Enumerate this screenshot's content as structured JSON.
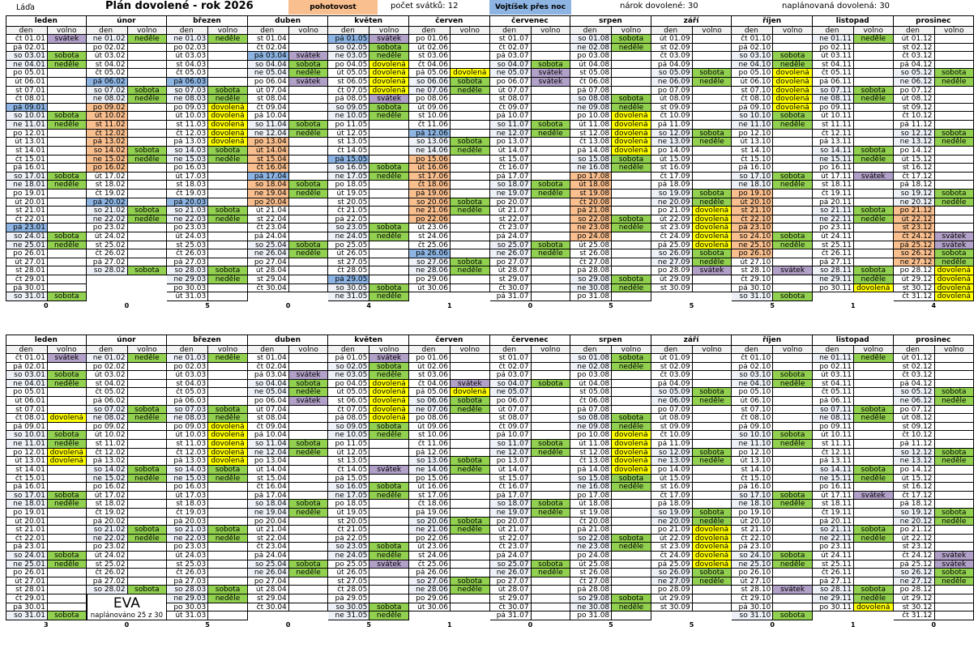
{
  "header": {
    "person": "Láďa",
    "title": "Plán dovolené - rok 2026",
    "pohotovost": "pohotovost",
    "holidays_count": "počet svátků: 12",
    "overnight": "Vojtíšek přes noc",
    "entitlement": "nárok dovolené: 30",
    "planned": "naplánovaná dovolená: 30"
  },
  "labels": {
    "den": "den",
    "volno": "volno",
    "weekend": {
      "so": "sobota",
      "ne": "neděle"
    }
  },
  "colors": {
    "sobota": "#92d050",
    "neděle": "#92d050",
    "svátek": "#b1a0c7",
    "dovolená": "#ffff00",
    "pohotovost": "#fabf8f",
    "noc": "#8db4e2",
    "weekend_day": "#eef2f8"
  },
  "months": [
    {
      "name": "leden",
      "days": [
        "čt 01.01",
        "pá 02.01",
        "so 03.01",
        "ne 04.01",
        "po 05.01",
        "út 06.01",
        "st 07.01",
        "čt 08.01",
        "pá 09.01",
        "so 10.01",
        "ne 11.01",
        "po 12.01",
        "út 13.01",
        "st 14.01",
        "čt 15.01",
        "pá 16.01",
        "so 17.01",
        "ne 18.01",
        "po 19.01",
        "út 20.01",
        "st 21.01",
        "čt 22.01",
        "pá 23.01",
        "so 24.01",
        "ne 25.01",
        "po 26.01",
        "út 27.01",
        "st 28.01",
        "čt 29.01",
        "pá 30.01",
        "so 31.01"
      ]
    },
    {
      "name": "únor",
      "days": [
        "ne 01.02",
        "po 02.02",
        "út 03.02",
        "st 04.02",
        "čt 05.02",
        "pá 06.02",
        "so 07.02",
        "ne 08.02",
        "po 09.02",
        "út 10.02",
        "st 11.02",
        "čt 12.02",
        "pá 13.02",
        "so 14.02",
        "ne 15.02",
        "po 16.02",
        "út 17.02",
        "st 18.02",
        "čt 19.02",
        "pá 20.02",
        "so 21.02",
        "ne 22.02",
        "po 23.02",
        "út 24.02",
        "st 25.02",
        "čt 26.02",
        "pá 27.02",
        "so 28.02"
      ]
    },
    {
      "name": "březen",
      "days": [
        "ne 01.03",
        "po 02.03",
        "út 03.03",
        "st 04.03",
        "čt 05.03",
        "pá 06.03",
        "so 07.03",
        "ne 08.03",
        "po 09.03",
        "út 10.03",
        "st 11.03",
        "čt 12.03",
        "pá 13.03",
        "so 14.03",
        "ne 15.03",
        "po 16.03",
        "út 17.03",
        "st 18.03",
        "čt 19.03",
        "pá 20.03",
        "so 21.03",
        "ne 22.03",
        "po 23.03",
        "út 24.03",
        "st 25.03",
        "čt 26.03",
        "pá 27.03",
        "so 28.03",
        "ne 29.03",
        "po 30.03",
        "út 31.03"
      ]
    },
    {
      "name": "duben",
      "days": [
        "st 01.04",
        "čt 02.04",
        "pá 03.04",
        "so 04.04",
        "ne 05.04",
        "po 06.04",
        "út 07.04",
        "st 08.04",
        "čt 09.04",
        "pá 10.04",
        "so 11.04",
        "ne 12.04",
        "po 13.04",
        "út 14.04",
        "st 15.04",
        "čt 16.04",
        "pá 17.04",
        "so 18.04",
        "ne 19.04",
        "po 20.04",
        "út 21.04",
        "st 22.04",
        "čt 23.04",
        "pá 24.04",
        "so 25.04",
        "ne 26.04",
        "po 27.04",
        "út 28.04",
        "st 29.04",
        "čt 30.04"
      ]
    },
    {
      "name": "květen",
      "days": [
        "pá 01.05",
        "so 02.05",
        "ne 03.05",
        "po 04.05",
        "út 05.05",
        "st 06.05",
        "čt 07.05",
        "pá 08.05",
        "so 09.05",
        "ne 10.05",
        "po 11.05",
        "út 12.05",
        "st 13.05",
        "čt 14.05",
        "pá 15.05",
        "so 16.05",
        "ne 17.05",
        "po 18.05",
        "út 19.05",
        "st 20.05",
        "čt 21.05",
        "pá 22.05",
        "so 23.05",
        "ne 24.05",
        "po 25.05",
        "út 26.05",
        "st 27.05",
        "čt 28.05",
        "pá 29.05",
        "so 30.05",
        "ne 31.05"
      ]
    },
    {
      "name": "červen",
      "days": [
        "po 01.06",
        "út 02.06",
        "st 03.06",
        "čt 04.06",
        "pá 05.06",
        "so 06.06",
        "ne 07.06",
        "po 08.06",
        "út 09.06",
        "st 10.06",
        "čt 11.06",
        "pá 12.06",
        "so 13.06",
        "ne 14.06",
        "po 15.06",
        "út 16.06",
        "st 17.06",
        "čt 18.06",
        "pá 19.06",
        "so 20.06",
        "ne 21.06",
        "po 22.06",
        "út 23.06",
        "st 24.06",
        "čt 25.06",
        "pá 26.06",
        "so 27.06",
        "ne 28.06",
        "po 29.06",
        "út 30.06"
      ]
    },
    {
      "name": "červenec",
      "days": [
        "st 01.07",
        "čt 02.07",
        "pá 03.07",
        "so 04.07",
        "ne 05.07",
        "po 06.07",
        "út 07.07",
        "st 08.07",
        "čt 09.07",
        "pá 10.07",
        "so 11.07",
        "ne 12.07",
        "po 13.07",
        "út 14.07",
        "st 15.07",
        "čt 16.07",
        "pá 17.07",
        "so 18.07",
        "ne 19.07",
        "po 20.07",
        "út 21.07",
        "st 22.07",
        "čt 23.07",
        "pá 24.07",
        "so 25.07",
        "ne 26.07",
        "po 27.07",
        "út 28.07",
        "st 29.07",
        "čt 30.07",
        "pá 31.07"
      ]
    },
    {
      "name": "srpen",
      "days": [
        "so 01.08",
        "ne 02.08",
        "po 03.08",
        "út 04.08",
        "st 05.08",
        "čt 06.08",
        "pá 07.08",
        "so 08.08",
        "ne 09.08",
        "po 10.08",
        "út 11.08",
        "st 12.08",
        "čt 13.08",
        "pá 14.08",
        "so 15.08",
        "ne 16.08",
        "po 17.08",
        "út 18.08",
        "st 19.08",
        "čt 20.08",
        "pá 21.08",
        "so 22.08",
        "ne 23.08",
        "po 24.08",
        "út 25.08",
        "st 26.08",
        "čt 27.08",
        "pá 28.08",
        "so 29.08",
        "ne 30.08",
        "po 31.08"
      ]
    },
    {
      "name": "září",
      "days": [
        "út 01.09",
        "st 02.09",
        "čt 03.09",
        "pá 04.09",
        "so 05.09",
        "ne 06.09",
        "po 07.09",
        "út 08.09",
        "st 09.09",
        "čt 10.09",
        "pá 11.09",
        "so 12.09",
        "ne 13.09",
        "po 14.09",
        "út 15.09",
        "st 16.09",
        "čt 17.09",
        "pá 18.09",
        "so 19.09",
        "ne 20.09",
        "po 21.09",
        "út 22.09",
        "st 23.09",
        "čt 24.09",
        "pá 25.09",
        "so 26.09",
        "ne 27.09",
        "po 28.09",
        "út 29.09",
        "st 30.09"
      ]
    },
    {
      "name": "říjen",
      "days": [
        "čt 01.10",
        "pá 02.10",
        "so 03.10",
        "ne 04.10",
        "po 05.10",
        "út 06.10",
        "st 07.10",
        "čt 08.10",
        "pá 09.10",
        "so 10.10",
        "ne 11.10",
        "po 12.10",
        "út 13.10",
        "st 14.10",
        "čt 15.10",
        "pá 16.10",
        "so 17.10",
        "ne 18.10",
        "po 19.10",
        "út 20.10",
        "st 21.10",
        "čt 22.10",
        "pá 23.10",
        "so 24.10",
        "ne 25.10",
        "po 26.10",
        "út 27.10",
        "st 28.10",
        "čt 29.10",
        "pá 30.10",
        "so 31.10"
      ]
    },
    {
      "name": "listopad",
      "days": [
        "ne 01.11",
        "po 02.11",
        "út 03.11",
        "st 04.11",
        "čt 05.11",
        "pá 06.11",
        "so 07.11",
        "ne 08.11",
        "po 09.11",
        "út 10.11",
        "st 11.11",
        "čt 12.11",
        "pá 13.11",
        "so 14.11",
        "ne 15.11",
        "po 16.11",
        "út 17.11",
        "st 18.11",
        "čt 19.11",
        "pá 20.11",
        "so 21.11",
        "ne 22.11",
        "po 23.11",
        "út 24.11",
        "st 25.11",
        "čt 26.11",
        "pá 27.11",
        "so 28.11",
        "ne 29.11",
        "po 30.11"
      ]
    },
    {
      "name": "prosinec",
      "days": [
        "út 01.12",
        "st 02.12",
        "čt 03.12",
        "pá 04.12",
        "so 05.12",
        "ne 06.12",
        "po 07.12",
        "út 08.12",
        "st 09.12",
        "čt 10.12",
        "pá 11.12",
        "so 12.12",
        "ne 13.12",
        "po 14.12",
        "út 15.12",
        "st 16.12",
        "čt 17.12",
        "pá 18.12",
        "so 19.12",
        "ne 20.12",
        "po 21.12",
        "út 22.12",
        "st 23.12",
        "čt 24.12",
        "pá 25.12",
        "so 26.12",
        "ne 27.12",
        "po 28.12",
        "út 29.12",
        "st 30.12",
        "čt 31.12"
      ]
    }
  ],
  "calendars": [
    {
      "months": [
        {
          "volno": {
            "1": "svátek"
          },
          "pohotovost": [],
          "noc": [
            9,
            23
          ],
          "count": "0"
        },
        {
          "volno": {},
          "pohotovost": [
            9,
            10,
            11,
            12,
            13,
            14,
            15,
            16
          ],
          "noc": [
            6,
            20
          ],
          "count": "0"
        },
        {
          "volno": {
            "9": "dovolená",
            "10": "dovolená",
            "11": "dovolená",
            "12": "dovolená",
            "13": "dovolená"
          },
          "pohotovost": [],
          "noc": [
            6,
            20
          ],
          "count": "5"
        },
        {
          "volno": {
            "3": "svátek",
            "6": "svátek"
          },
          "pohotovost": [
            13,
            14,
            15,
            16,
            18,
            19,
            20
          ],
          "noc": [
            3,
            17
          ],
          "count": "0"
        },
        {
          "volno": {
            "1": "svátek",
            "4": "dovolená",
            "5": "dovolená",
            "6": "dovolená",
            "7": "dovolená",
            "8": "svátek"
          },
          "pohotovost": [],
          "noc": [
            1,
            15,
            29
          ],
          "count": "4"
        },
        {
          "volno": {
            "5": "dovolená"
          },
          "pohotovost": [
            15,
            16,
            17,
            18,
            19,
            20,
            21,
            22
          ],
          "noc": [
            12,
            26
          ],
          "count": "1"
        },
        {
          "volno": {
            "5": "svátek",
            "6": "svátek"
          },
          "pohotovost": [],
          "noc": [],
          "count": "0"
        },
        {
          "volno": {
            "10": "dovolená",
            "11": "dovolená",
            "12": "dovolená",
            "13": "dovolená",
            "14": "dovolená"
          },
          "pohotovost": [
            17,
            18,
            19,
            20,
            21,
            22,
            23,
            24
          ],
          "noc": [],
          "count": "5"
        },
        {
          "volno": {
            "21": "dovolená",
            "22": "dovolená",
            "23": "dovolená",
            "24": "dovolená",
            "25": "dovolená",
            "28": "svátek"
          },
          "pohotovost": [],
          "noc": [],
          "count": "5"
        },
        {
          "volno": {
            "5": "dovolená",
            "6": "dovolená",
            "7": "dovolená",
            "8": "dovolená",
            "9": "dovolená",
            "28": "svátek"
          },
          "pohotovost": [
            19,
            20,
            21,
            22,
            23,
            24,
            25,
            26
          ],
          "noc": [],
          "count": "5"
        },
        {
          "volno": {
            "17": "svátek",
            "30": "dovolená"
          },
          "pohotovost": [],
          "noc": [],
          "count": "1"
        },
        {
          "volno": {
            "24": "svátek",
            "25": "svátek",
            "28": "dovolená",
            "29": "dovolená",
            "30": "dovolená",
            "31": "dovolená"
          },
          "pohotovost": [
            21,
            22,
            23,
            24,
            25,
            26,
            27
          ],
          "noc": [],
          "count": "4"
        }
      ]
    },
    {
      "box": {
        "name": "EVA",
        "summary": "naplánováno  25 z 30"
      },
      "months": [
        {
          "volno": {
            "1": "svátek",
            "8": "dovolená",
            "12": "dovolená",
            "13": "dovolená"
          },
          "pohotovost": [],
          "noc": [],
          "count": "3"
        },
        {
          "volno": {},
          "pohotovost": [],
          "noc": [],
          "count": "0"
        },
        {
          "volno": {
            "9": "dovolená",
            "10": "dovolená",
            "11": "dovolená",
            "12": "dovolená",
            "13": "dovolená"
          },
          "pohotovost": [],
          "noc": [],
          "count": "5"
        },
        {
          "volno": {
            "3": "svátek",
            "6": "svátek"
          },
          "pohotovost": [],
          "noc": [],
          "count": "0"
        },
        {
          "volno": {
            "1": "svátek",
            "4": "dovolená",
            "5": "dovolená",
            "6": "dovolená",
            "7": "dovolená",
            "8": "dovolená",
            "14": "svátek",
            "25": "svátek"
          },
          "pohotovost": [],
          "noc": [],
          "count": "5"
        },
        {
          "volno": {
            "4": "svátek",
            "5": "dovolená"
          },
          "pohotovost": [],
          "noc": [],
          "count": "1"
        },
        {
          "volno": {
            "5": ""
          },
          "pohotovost": [],
          "noc": [],
          "count": "0"
        },
        {
          "volno": {
            "10": "dovolená",
            "11": "dovolená",
            "12": "dovolená",
            "13": "dovolená",
            "14": "dovolená"
          },
          "pohotovost": [],
          "noc": [],
          "count": "5"
        },
        {
          "volno": {
            "21": "dovolená",
            "22": "dovolená",
            "23": "dovolená",
            "24": "dovolená",
            "25": "dovolená"
          },
          "pohotovost": [],
          "noc": [],
          "count": "5"
        },
        {
          "volno": {
            "28": "svátek"
          },
          "pohotovost": [],
          "noc": [],
          "count": "0"
        },
        {
          "volno": {
            "17": "svátek",
            "30": "dovolená"
          },
          "pohotovost": [],
          "noc": [],
          "count": "1"
        },
        {
          "volno": {
            "24": "svátek",
            "25": "svátek"
          },
          "pohotovost": [],
          "noc": [],
          "count": "0"
        }
      ]
    }
  ]
}
